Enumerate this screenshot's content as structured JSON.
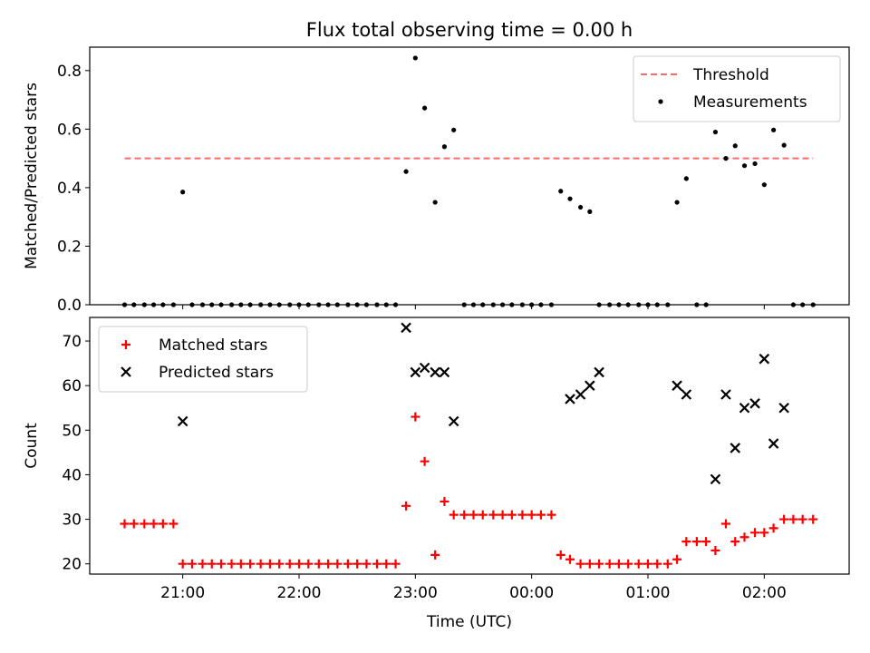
{
  "chart_data": [
    {
      "type": "scatter",
      "title": "Flux total observing time = 0.00 h",
      "xlabel": "",
      "ylabel": "Matched/Predicted stars",
      "ylim": [
        0,
        0.88
      ],
      "yticks": [
        "0.0",
        "0.2",
        "0.4",
        "0.6",
        "0.8"
      ],
      "xlim_hours": [
        20.2,
        26.73
      ],
      "legend_position": "top-right",
      "threshold": {
        "name": "Threshold",
        "value": 0.5,
        "x_range_hours": [
          20.5,
          26.42
        ],
        "color": "#ff6b6b"
      },
      "series": [
        {
          "name": "Measurements",
          "color": "#000000",
          "marker": "dot",
          "x": [
            20.5,
            20.58,
            20.67,
            20.75,
            20.83,
            20.92,
            21.0,
            21.08,
            21.17,
            21.25,
            21.33,
            21.42,
            21.5,
            21.58,
            21.67,
            21.75,
            21.83,
            21.92,
            22.0,
            22.08,
            22.17,
            22.25,
            22.33,
            22.42,
            22.5,
            22.58,
            22.67,
            22.75,
            22.83,
            22.92,
            23.0,
            23.08,
            23.17,
            23.25,
            23.33,
            23.42,
            23.5,
            23.58,
            23.67,
            23.75,
            23.83,
            23.92,
            24.0,
            24.08,
            24.17,
            24.25,
            24.33,
            24.42,
            24.5,
            24.58,
            24.67,
            24.75,
            24.83,
            24.92,
            25.0,
            25.08,
            25.17,
            25.25,
            25.33,
            25.42,
            25.5,
            25.58,
            25.67,
            25.75,
            25.83,
            25.92,
            26.0,
            26.08,
            26.17,
            26.25,
            26.33,
            26.42
          ],
          "y": [
            0,
            0,
            0,
            0,
            0,
            0,
            0.385,
            0,
            0,
            0,
            0,
            0,
            0,
            0,
            0,
            0,
            0,
            0,
            0,
            0,
            0,
            0,
            0,
            0,
            0,
            0,
            0,
            0,
            0,
            0.455,
            0.843,
            0.672,
            0.35,
            0.54,
            0.597,
            0,
            0,
            0,
            0,
            0,
            0,
            0,
            0,
            0,
            0,
            0.388,
            0.362,
            0.333,
            0.318,
            0,
            0,
            0,
            0,
            0,
            0,
            0,
            0,
            0.35,
            0.431,
            0,
            0,
            0.59,
            0.5,
            0.543,
            0.475,
            0.482,
            0.41,
            0.597,
            0.545,
            0,
            0,
            0
          ]
        }
      ]
    },
    {
      "type": "scatter",
      "title": "",
      "xlabel": "Time (UTC)",
      "ylabel": "Count",
      "ylim": [
        17.7,
        75.3
      ],
      "yticks": [
        "20",
        "30",
        "40",
        "50",
        "60",
        "70"
      ],
      "xlim_hours": [
        20.2,
        26.73
      ],
      "xticks": [
        {
          "hour": 21,
          "label": "21:00"
        },
        {
          "hour": 22,
          "label": "22:00"
        },
        {
          "hour": 23,
          "label": "23:00"
        },
        {
          "hour": 24,
          "label": "00:00"
        },
        {
          "hour": 25,
          "label": "01:00"
        },
        {
          "hour": 26,
          "label": "02:00"
        }
      ],
      "legend_position": "top-left",
      "series": [
        {
          "name": "Matched stars",
          "color": "#ff0000",
          "marker": "plus",
          "x": [
            20.5,
            20.58,
            20.67,
            20.75,
            20.83,
            20.92,
            21.0,
            21.08,
            21.17,
            21.25,
            21.33,
            21.42,
            21.5,
            21.58,
            21.67,
            21.75,
            21.83,
            21.92,
            22.0,
            22.08,
            22.17,
            22.25,
            22.33,
            22.42,
            22.5,
            22.58,
            22.67,
            22.75,
            22.83,
            22.92,
            23.0,
            23.08,
            23.17,
            23.25,
            23.33,
            23.42,
            23.5,
            23.58,
            23.67,
            23.75,
            23.83,
            23.92,
            24.0,
            24.08,
            24.17,
            24.25,
            24.33,
            24.42,
            24.5,
            24.58,
            24.67,
            24.75,
            24.83,
            24.92,
            25.0,
            25.08,
            25.17,
            25.25,
            25.33,
            25.42,
            25.5,
            25.58,
            25.67,
            25.75,
            25.83,
            25.92,
            26.0,
            26.08,
            26.17,
            26.25,
            26.33,
            26.42
          ],
          "y": [
            29,
            29,
            29,
            29,
            29,
            29,
            20,
            20,
            20,
            20,
            20,
            20,
            20,
            20,
            20,
            20,
            20,
            20,
            20,
            20,
            20,
            20,
            20,
            20,
            20,
            20,
            20,
            20,
            20,
            33,
            53,
            43,
            22,
            34,
            31,
            31,
            31,
            31,
            31,
            31,
            31,
            31,
            31,
            31,
            31,
            22,
            21,
            20,
            20,
            20,
            20,
            20,
            20,
            20,
            20,
            20,
            20,
            21,
            25,
            25,
            25,
            23,
            29,
            25,
            26,
            27,
            27,
            28,
            30,
            30,
            30,
            30
          ]
        },
        {
          "name": "Predicted stars",
          "color": "#000000",
          "marker": "x",
          "x": [
            21.0,
            22.92,
            23.0,
            23.08,
            23.17,
            23.25,
            23.33,
            24.33,
            24.42,
            24.5,
            24.58,
            25.25,
            25.33,
            25.58,
            25.67,
            25.75,
            25.83,
            25.92,
            26.0,
            26.08,
            26.17
          ],
          "y": [
            52,
            73,
            63,
            64,
            63,
            63,
            52,
            57,
            58,
            60,
            63,
            60,
            58,
            39,
            58,
            46,
            55,
            56,
            66,
            47,
            55
          ]
        }
      ]
    }
  ]
}
